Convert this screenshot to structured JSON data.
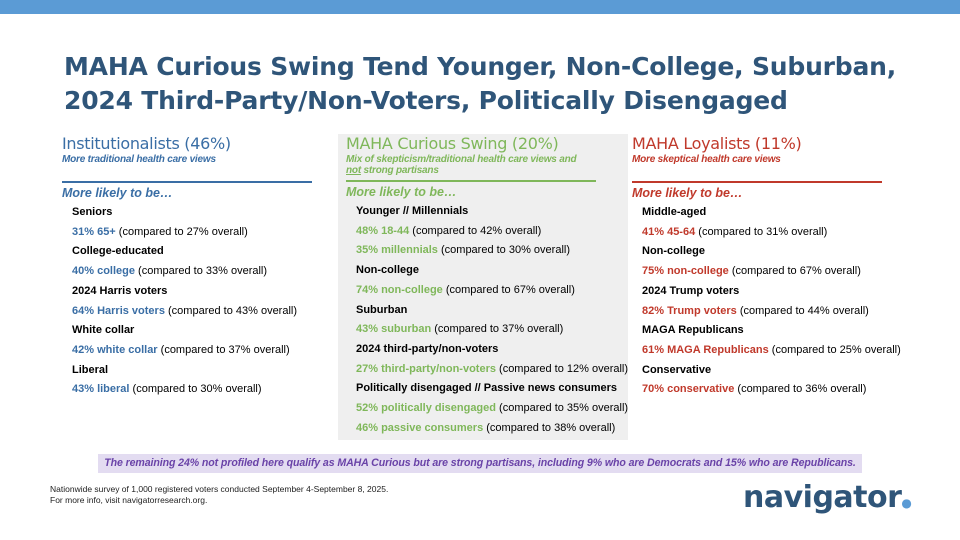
{
  "title": {
    "line1": "MAHA Curious Swing Tend Younger, Non-College, Suburban,",
    "line2": "2024 Third-Party/Non-Voters, Politically Disengaged"
  },
  "colors": {
    "blue": "#3a6ea5",
    "green": "#7fb75a",
    "red": "#c0392b",
    "title": "#2f5579",
    "topbar": "#5b9bd5"
  },
  "columns": [
    {
      "heading": "Institutionalists (46%)",
      "subtitle_pre": "More traditional health care views",
      "subtitle_u": "",
      "subtitle_post": "",
      "more": "More likely to be…",
      "items": [
        {
          "cat": "Seniors"
        },
        {
          "hl": "31% 65+",
          "rest": " (compared to 27% overall)"
        },
        {
          "cat": "College-educated"
        },
        {
          "hl": "40% college",
          "rest": " (compared to 33% overall)"
        },
        {
          "cat": "2024 Harris voters"
        },
        {
          "hl": "64% Harris voters",
          "rest": " (compared to 43% overall)"
        },
        {
          "cat": "White collar"
        },
        {
          "hl": "42% white collar",
          "rest": " (compared to 37% overall)"
        },
        {
          "cat": "Liberal"
        },
        {
          "hl": "43% liberal",
          "rest": " (compared to 30% overall)"
        }
      ]
    },
    {
      "heading": "MAHA Curious Swing (20%)",
      "subtitle_pre": "Mix of skepticism/traditional health care views and",
      "subtitle_u": "not",
      "subtitle_post": " strong partisans",
      "more": "More likely to be…",
      "items": [
        {
          "cat": "Younger // Millennials"
        },
        {
          "hl": "48% 18-44",
          "rest": " (compared to 42% overall)"
        },
        {
          "hl": "35% millennials",
          "rest": " (compared to 30% overall)"
        },
        {
          "cat": "Non-college"
        },
        {
          "hl": "74% non-college",
          "rest": " (compared to 67% overall)"
        },
        {
          "cat": "Suburban"
        },
        {
          "hl": "43% suburban",
          "rest": " (compared to 37% overall)"
        },
        {
          "cat": "2024 third-party/non-voters"
        },
        {
          "hl": "27% third-party/non-voters",
          "rest": " (compared to 12% overall)"
        },
        {
          "cat": "Politically disengaged // Passive news consumers"
        },
        {
          "hl": "52% politically disengaged",
          "rest": " (compared to 35% overall)"
        },
        {
          "hl": "46% passive consumers",
          "rest": " (compared to 38% overall)"
        }
      ]
    },
    {
      "heading": "MAHA Loyalists (11%)",
      "subtitle_pre": "More skeptical health care views",
      "subtitle_u": "",
      "subtitle_post": "",
      "more": "More likely to be…",
      "items": [
        {
          "cat": "Middle-aged"
        },
        {
          "hl": "41% 45-64",
          "rest": " (compared to 31% overall)"
        },
        {
          "cat": "Non-college"
        },
        {
          "hl": "75% non-college",
          "rest": " (compared to 67% overall)"
        },
        {
          "cat": "2024 Trump voters"
        },
        {
          "hl": "82% Trump voters",
          "rest": " (compared to 44% overall)"
        },
        {
          "cat": "MAGA Republicans"
        },
        {
          "hl": "61% MAGA Republicans",
          "rest": " (compared to 25% overall)"
        },
        {
          "cat": "Conservative"
        },
        {
          "hl": "70% conservative",
          "rest": " (compared to 36% overall)"
        }
      ]
    }
  ],
  "note": "The remaining 24% not profiled here qualify as MAHA Curious but are strong partisans, including 9% who are Democrats and 15% who are Republicans.",
  "footer": {
    "line1": "Nationwide survey of 1,000 registered voters conducted September 4-September 8, 2025.",
    "line2": "For more info, visit navigatorresearch.org."
  },
  "logo": "navigator"
}
